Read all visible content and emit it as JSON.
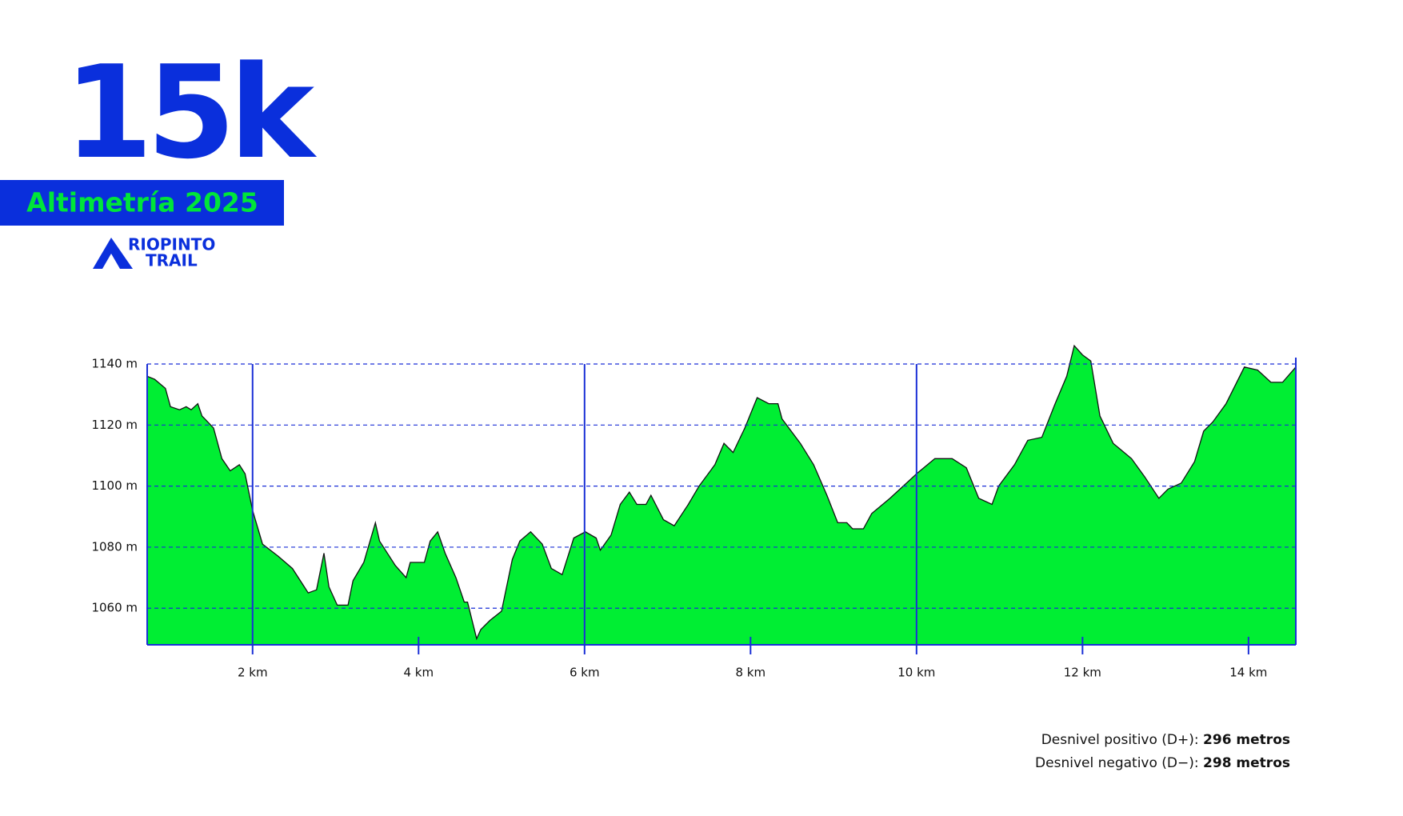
{
  "chart_data": {
    "type": "area",
    "title": "15k",
    "subtitle": "Altimetría 2025",
    "logo": [
      "RIOPINTO",
      "TRAIL"
    ],
    "x": [
      0.73,
      0.82,
      0.95,
      1.01,
      1.12,
      1.2,
      1.26,
      1.34,
      1.39,
      1.53,
      1.63,
      1.73,
      1.84,
      1.91,
      2.0,
      2.12,
      2.31,
      2.48,
      2.67,
      2.77,
      2.86,
      2.92,
      3.02,
      3.15,
      3.21,
      3.34,
      3.48,
      3.53,
      3.72,
      3.85,
      3.9,
      4.07,
      4.14,
      4.23,
      4.32,
      4.45,
      4.55,
      4.59,
      4.7,
      4.75,
      4.86,
      5.0,
      5.13,
      5.22,
      5.35,
      5.49,
      5.6,
      5.73,
      5.87,
      6.01,
      6.14,
      6.19,
      6.32,
      6.43,
      6.54,
      6.63,
      6.74,
      6.8,
      6.95,
      7.08,
      7.25,
      7.38,
      7.57,
      7.68,
      7.79,
      7.93,
      8.08,
      8.22,
      8.33,
      8.38,
      8.6,
      8.76,
      8.92,
      9.05,
      9.16,
      9.23,
      9.36,
      9.46,
      9.68,
      9.84,
      10.0,
      10.22,
      10.35,
      10.43,
      10.6,
      10.75,
      10.91,
      10.99,
      11.18,
      11.34,
      11.51,
      11.67,
      11.81,
      11.9,
      12.0,
      12.1,
      12.21,
      12.37,
      12.59,
      12.75,
      12.92,
      13.03,
      13.19,
      13.35,
      13.46,
      13.57,
      13.73,
      13.95,
      14.11,
      14.27,
      14.41,
      14.57
    ],
    "values": [
      1136,
      1135,
      1132,
      1126,
      1125,
      1126,
      1125,
      1127,
      1123,
      1119,
      1109,
      1105,
      1107,
      1104,
      1092,
      1081,
      1077,
      1073,
      1065,
      1066,
      1078,
      1067,
      1061,
      1061,
      1069,
      1075,
      1088,
      1082,
      1074,
      1070,
      1075,
      1075,
      1082,
      1085,
      1078,
      1070,
      1062,
      1062,
      1050,
      1053,
      1056,
      1059,
      1076,
      1082,
      1085,
      1081,
      1073,
      1071,
      1083,
      1085,
      1083,
      1079,
      1084,
      1094,
      1098,
      1094,
      1094,
      1097,
      1089,
      1087,
      1094,
      1100,
      1107,
      1114,
      1111,
      1119,
      1129,
      1127,
      1127,
      1122,
      1114,
      1107,
      1097,
      1088,
      1088,
      1086,
      1086,
      1091,
      1096,
      1100,
      1104,
      1109,
      1109,
      1109,
      1106,
      1096,
      1094,
      1100,
      1107,
      1115,
      1116,
      1127,
      1136,
      1146,
      1143,
      1141,
      1123,
      1114,
      1109,
      1103,
      1096,
      1099,
      1101,
      1108,
      1118,
      1121,
      1127,
      1139,
      1138,
      1134,
      1134,
      1139
    ],
    "color": "#00ee33",
    "xlim": [
      0.73,
      14.57
    ],
    "ylim": [
      1048,
      1140
    ],
    "xticks": [
      {
        "value": 2,
        "label": "2 km"
      },
      {
        "value": 4,
        "label": "4 km"
      },
      {
        "value": 6,
        "label": "6 km"
      },
      {
        "value": 8,
        "label": "8 km"
      },
      {
        "value": 10,
        "label": "10 km"
      },
      {
        "value": 12,
        "label": "12 km"
      },
      {
        "value": 14,
        "label": "14 km"
      }
    ],
    "yticks": [
      {
        "value": 1060,
        "label": "1060 m"
      },
      {
        "value": 1080,
        "label": "1080 m"
      },
      {
        "value": 1100,
        "label": "1100 m"
      },
      {
        "value": 1120,
        "label": "1120 m"
      },
      {
        "value": 1140,
        "label": "1140 m"
      }
    ],
    "grid": true,
    "stats": [
      {
        "label": "Desnivel positivo (D+):",
        "value": "296 metros"
      },
      {
        "label": "Desnivel negativo (D−):",
        "value": "298 metros"
      }
    ]
  }
}
